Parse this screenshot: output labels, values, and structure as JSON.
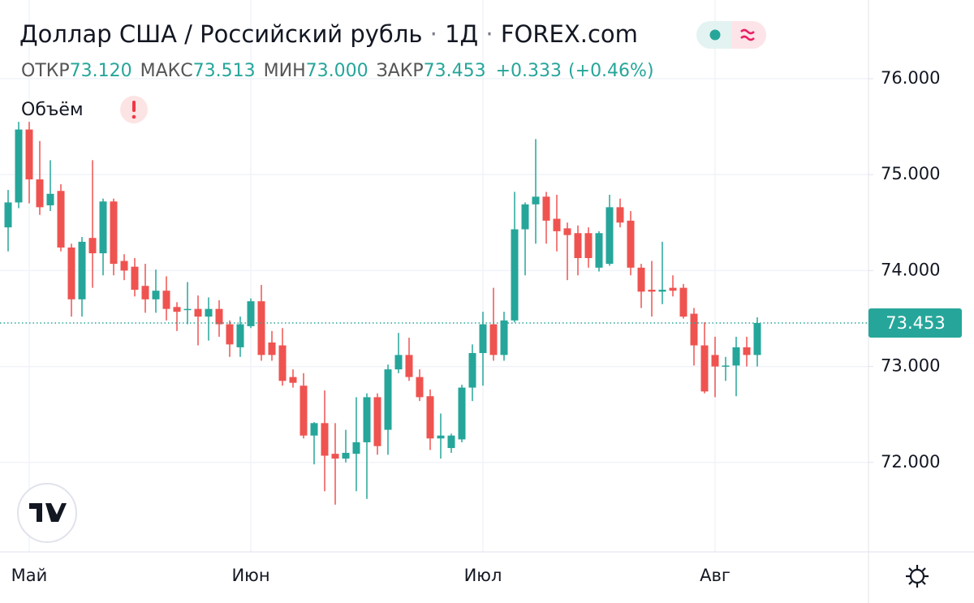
{
  "header": {
    "title": "Доллар США / Российский рубль",
    "interval": "1Д",
    "source": "FOREX.com",
    "open_label": "ОТКР",
    "open": "73.120",
    "high_label": "МАКС",
    "high": "73.513",
    "low_label": "МИН",
    "low": "73.000",
    "close_label": "ЗАКР",
    "close": "73.453",
    "change": "+0.333",
    "change_pct": "(+0.46%)",
    "volume_label": "Объём"
  },
  "chart_data": {
    "type": "candlestick",
    "categories": [
      null,
      null,
      "Май",
      null,
      null,
      null,
      null,
      null,
      null,
      null,
      null,
      null,
      null,
      null,
      null,
      null,
      null,
      null,
      null,
      null,
      null,
      null,
      null,
      "Июн",
      null,
      null,
      null,
      null,
      null,
      null,
      null,
      null,
      null,
      null,
      null,
      null,
      null,
      null,
      null,
      null,
      null,
      null,
      null,
      null,
      null,
      "Июл",
      null,
      null,
      null,
      null,
      null,
      null,
      null,
      null,
      null,
      null,
      null,
      null,
      null,
      null,
      null,
      null,
      null,
      null,
      null,
      null,
      null,
      "Авг",
      null,
      null,
      null,
      null
    ],
    "open": [
      74.45,
      74.71,
      75.47,
      74.95,
      74.68,
      74.83,
      74.24,
      73.7,
      74.34,
      74.18,
      74.72,
      74.1,
      74.04,
      73.84,
      73.7,
      73.79,
      73.62,
      73.59,
      73.6,
      73.52,
      73.6,
      73.44,
      73.2,
      73.42,
      73.68,
      73.25,
      73.22,
      72.89,
      72.8,
      72.28,
      72.41,
      72.09,
      72.04,
      72.09,
      72.21,
      72.68,
      72.34,
      72.97,
      73.12,
      72.89,
      72.69,
      72.25,
      72.15,
      72.24,
      72.78,
      73.14,
      73.44,
      73.12,
      73.48,
      74.43,
      74.69,
      74.77,
      74.54,
      74.44,
      74.39,
      74.39,
      74.03,
      74.07,
      74.66,
      74.52,
      74.03,
      73.8,
      73.78,
      73.82,
      73.82,
      73.55,
      73.22,
      73.12,
      73.0,
      73.01,
      73.2,
      73.12
    ],
    "high": [
      74.84,
      75.55,
      75.55,
      75.35,
      75.15,
      74.9,
      74.28,
      74.35,
      75.15,
      74.75,
      74.75,
      74.17,
      74.13,
      74.07,
      74.01,
      73.94,
      73.67,
      73.88,
      73.74,
      73.72,
      73.69,
      73.48,
      73.52,
      73.71,
      73.85,
      73.37,
      73.4,
      72.97,
      72.93,
      72.42,
      72.75,
      72.41,
      72.34,
      72.68,
      72.72,
      72.72,
      73.02,
      73.35,
      73.3,
      72.97,
      72.76,
      72.51,
      72.3,
      72.81,
      73.23,
      73.57,
      73.82,
      73.57,
      74.82,
      74.71,
      75.37,
      74.82,
      74.79,
      74.5,
      74.47,
      74.45,
      74.41,
      74.79,
      74.75,
      74.62,
      74.07,
      74.1,
      74.3,
      73.95,
      73.86,
      73.61,
      73.46,
      73.31,
      73.1,
      73.31,
      73.31,
      73.513
    ],
    "low": [
      74.2,
      74.65,
      74.7,
      74.58,
      74.62,
      74.2,
      73.52,
      73.52,
      73.82,
      73.95,
      73.95,
      73.9,
      73.73,
      73.56,
      73.56,
      73.48,
      73.37,
      73.44,
      73.22,
      73.27,
      73.31,
      73.1,
      73.1,
      73.4,
      73.06,
      73.06,
      72.8,
      72.78,
      72.25,
      71.98,
      71.7,
      71.56,
      72.0,
      71.7,
      71.62,
      72.08,
      72.08,
      72.93,
      72.85,
      72.64,
      72.13,
      72.04,
      72.1,
      72.21,
      72.64,
      72.8,
      73.06,
      73.06,
      73.46,
      73.95,
      74.28,
      74.28,
      74.2,
      73.9,
      73.95,
      74.03,
      73.99,
      74.05,
      74.45,
      73.95,
      73.61,
      73.52,
      73.65,
      73.73,
      73.5,
      73.01,
      72.72,
      72.68,
      72.85,
      72.69,
      73.0,
      73.0
    ],
    "close": [
      74.71,
      75.47,
      74.95,
      74.66,
      74.8,
      74.24,
      73.7,
      74.3,
      74.18,
      74.72,
      74.07,
      74.0,
      73.8,
      73.7,
      73.79,
      73.6,
      73.57,
      73.6,
      73.52,
      73.6,
      73.44,
      73.23,
      73.44,
      73.68,
      73.12,
      73.12,
      72.85,
      72.83,
      72.28,
      72.41,
      72.07,
      72.04,
      72.1,
      72.21,
      72.68,
      72.17,
      72.97,
      73.12,
      72.89,
      72.68,
      72.25,
      72.28,
      72.28,
      72.78,
      73.14,
      73.44,
      73.12,
      73.48,
      74.43,
      74.69,
      74.77,
      74.52,
      74.41,
      74.37,
      74.13,
      74.13,
      74.39,
      74.66,
      74.5,
      74.03,
      73.78,
      73.78,
      73.8,
      73.79,
      73.52,
      73.22,
      72.74,
      73.0,
      73.01,
      73.2,
      73.12,
      73.453
    ],
    "up_color": "#26a69a",
    "down_color": "#ef5350",
    "ylim": [
      71.11,
      76.82
    ],
    "yticks": [
      {
        "value": 72,
        "label": "72.000"
      },
      {
        "value": 73,
        "label": "73.000"
      },
      {
        "value": 74,
        "label": "74.000"
      },
      {
        "value": 75,
        "label": "75.000"
      },
      {
        "value": 76,
        "label": "76.000"
      }
    ],
    "last_price": 73.453,
    "last_price_label": "73.453",
    "grid": true
  }
}
